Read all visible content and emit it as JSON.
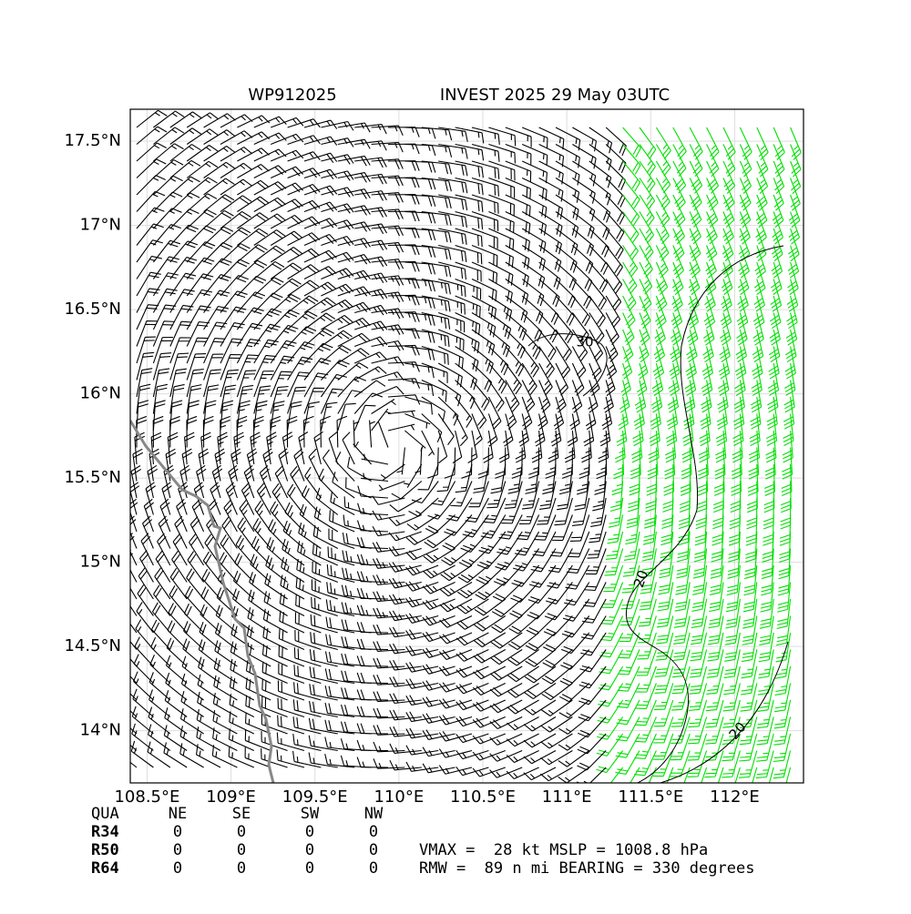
{
  "map": {
    "title_left": "WP912025",
    "title_right": "INVEST 2025 29 May 03UTC",
    "xlim": [
      108.4,
      112.41
    ],
    "ylim": [
      13.69,
      17.69
    ],
    "xticks": [
      {
        "value": 108.5,
        "label": "108.5°E"
      },
      {
        "value": 109,
        "label": "109°E"
      },
      {
        "value": 109.5,
        "label": "109.5°E"
      },
      {
        "value": 110,
        "label": "110°E"
      },
      {
        "value": 110.5,
        "label": "110.5°E"
      },
      {
        "value": 111,
        "label": "111°E"
      },
      {
        "value": 111.5,
        "label": "111.5°E"
      },
      {
        "value": 112,
        "label": "112°E"
      }
    ],
    "yticks": [
      {
        "value": 14,
        "label": "14°N"
      },
      {
        "value": 14.5,
        "label": "14.5°N"
      },
      {
        "value": 15,
        "label": "15°N"
      },
      {
        "value": 15.5,
        "label": "15.5°N"
      },
      {
        "value": 16,
        "label": "16°N"
      },
      {
        "value": 16.5,
        "label": "16.5°N"
      },
      {
        "value": 17,
        "label": "17°N"
      },
      {
        "value": 17.5,
        "label": "17.5°N"
      }
    ],
    "grid": true,
    "contour_labels": [
      "30",
      "20",
      "20"
    ],
    "wind_table": {
      "header": [
        "QUA",
        "NE",
        "SE",
        "SW",
        "NW"
      ],
      "rows": [
        [
          "R34",
          0,
          0,
          0,
          0
        ],
        [
          "R50",
          0,
          0,
          0,
          0
        ],
        [
          "R64",
          0,
          0,
          0,
          0
        ]
      ]
    },
    "info": [
      "VMAX =  28 kt MSLP = 1008.8 hPa",
      "RMW =  89 n mi BEARING = 330 degrees"
    ]
  }
}
